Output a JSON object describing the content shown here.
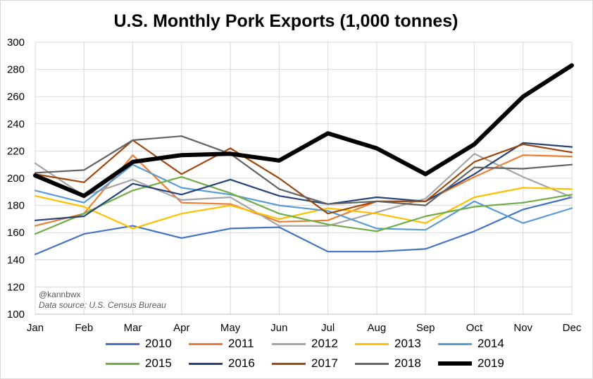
{
  "chart_data": {
    "type": "line",
    "title": "U.S. Monthly Pork Exports (1,000 tonnes)",
    "categories": [
      "Jan",
      "Feb",
      "Mar",
      "Apr",
      "May",
      "Jun",
      "Jul",
      "Aug",
      "Sep",
      "Oct",
      "Nov",
      "Dec"
    ],
    "ylim": [
      100,
      300
    ],
    "yticks": [
      100,
      120,
      140,
      160,
      180,
      200,
      220,
      240,
      260,
      280,
      300
    ],
    "grid": true,
    "legend_position": "bottom",
    "annotations": [
      "@kannbwx",
      "Data source: U.S. Census Bureau"
    ],
    "series": [
      {
        "name": "2010",
        "color": "#4472c4",
        "values": [
          144,
          159,
          165,
          156,
          163,
          164,
          146,
          146,
          148,
          161,
          177,
          186
        ]
      },
      {
        "name": "2011",
        "color": "#ed7d31",
        "values": [
          165,
          174,
          217,
          182,
          181,
          168,
          169,
          183,
          183,
          201,
          217,
          216
        ]
      },
      {
        "name": "2012",
        "color": "#a5a5a5",
        "values": [
          211,
          187,
          199,
          184,
          186,
          165,
          165,
          175,
          185,
          218,
          201,
          186
        ]
      },
      {
        "name": "2013",
        "color": "#ffc000",
        "values": [
          187,
          179,
          163,
          174,
          180,
          170,
          178,
          174,
          167,
          186,
          193,
          192
        ]
      },
      {
        "name": "2014",
        "color": "#5b9bd5",
        "values": [
          191,
          182,
          210,
          193,
          188,
          180,
          176,
          163,
          162,
          183,
          167,
          178
        ]
      },
      {
        "name": "2015",
        "color": "#70ad47",
        "values": [
          159,
          174,
          191,
          201,
          189,
          174,
          166,
          161,
          172,
          179,
          182,
          188
        ]
      },
      {
        "name": "2016",
        "color": "#264478",
        "values": [
          169,
          172,
          196,
          188,
          199,
          187,
          181,
          186,
          183,
          203,
          226,
          223
        ]
      },
      {
        "name": "2017",
        "color": "#9e480e",
        "values": [
          203,
          197,
          228,
          203,
          222,
          200,
          174,
          183,
          183,
          212,
          225,
          219
        ]
      },
      {
        "name": "2018",
        "color": "#636363",
        "values": [
          204,
          206,
          228,
          231,
          218,
          192,
          181,
          183,
          180,
          208,
          207,
          210
        ]
      },
      {
        "name": "2019",
        "color": "#000000",
        "values": [
          202,
          187,
          212,
          217,
          218,
          213,
          233,
          222,
          203,
          225,
          260,
          283
        ]
      }
    ]
  }
}
